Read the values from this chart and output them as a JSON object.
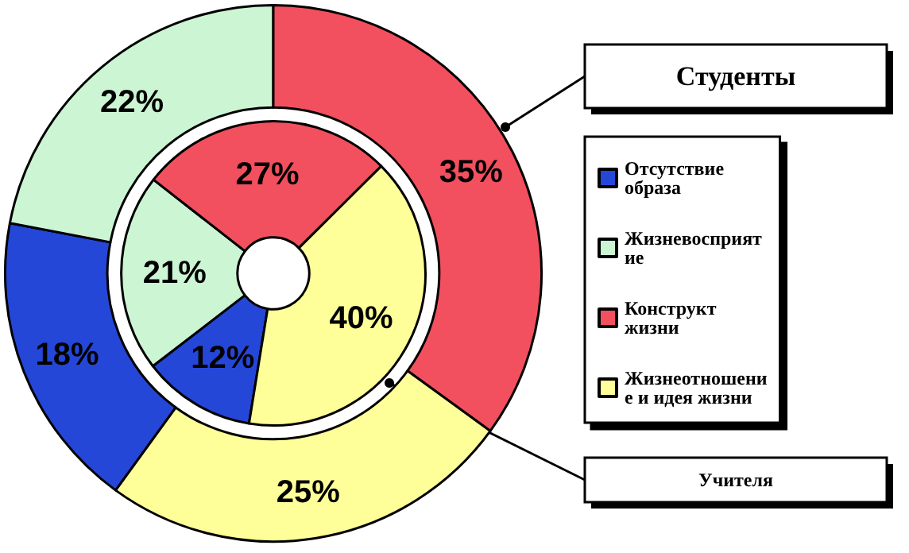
{
  "chart_data": {
    "type": "donut",
    "categories": [
      "Отсутствие образа",
      "Жизневосприятие",
      "Конструкт жизни",
      "Жизнеотношение и идея жизни"
    ],
    "colors": [
      "#2447d8",
      "#ccf5d4",
      "#f2505e",
      "#ffff99"
    ],
    "legend": "right",
    "series": [
      {
        "name": "Студенты",
        "values": [
          18,
          22,
          35,
          25
        ],
        "value_labels": [
          "18%",
          "22%",
          "35%",
          "25%"
        ]
      },
      {
        "name": "Учителя",
        "values": [
          12,
          21,
          27,
          40
        ],
        "value_labels": [
          "12%",
          "21%",
          "27%",
          "40%"
        ]
      }
    ]
  }
}
